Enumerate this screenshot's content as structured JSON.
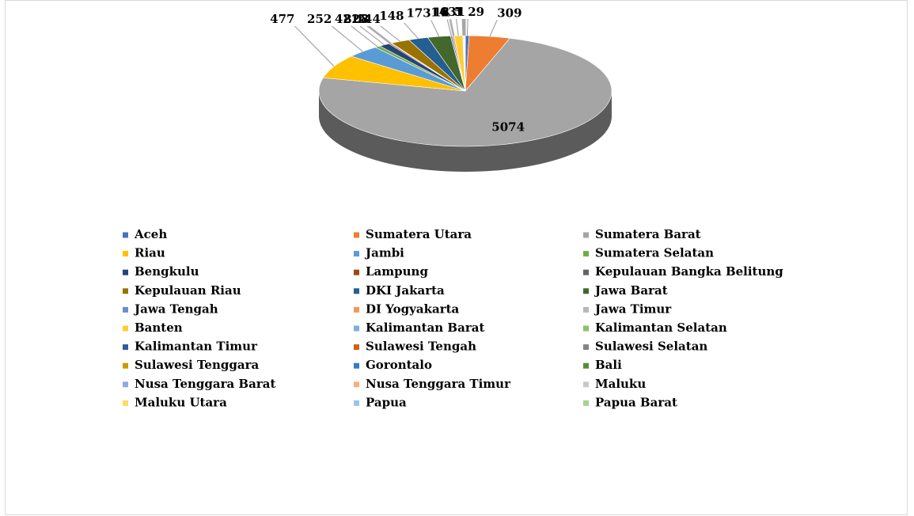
{
  "chart_data": {
    "type": "pie",
    "categories": [
      "Aceh",
      "Sumatera Utara",
      "Sumatera Barat",
      "Riau",
      "Jambi",
      "Sumatera Selatan",
      "Bengkulu",
      "Lampung",
      "Kepulauan Bangka Belitung",
      "Kepulauan Riau",
      "DKI Jakarta",
      "Jawa Barat",
      "Jawa Tengah",
      "DI Yogyakarta",
      "Jawa Timur",
      "Banten",
      "Kalimantan Barat",
      "Kalimantan Selatan",
      "Kalimantan Timur",
      "Sulawesi Tengah",
      "Sulawesi Selatan",
      "Sulawesi Tenggara",
      "Gorontalo",
      "Bali",
      "Nusa Tenggara Barat",
      "Nusa Tenggara Timur",
      "Maluku",
      "Maluku Utara",
      "Papua",
      "Papua Barat"
    ],
    "values": [
      29,
      309,
      5074,
      477,
      252,
      42,
      82,
      15,
      8,
      144,
      148,
      173,
      14,
      13,
      1,
      63,
      5,
      3,
      1,
      1,
      1,
      1,
      1,
      1,
      1,
      1,
      1,
      1,
      1,
      1
    ],
    "colors": [
      "#4472c4",
      "#ed7d31",
      "#a5a5a5",
      "#ffc000",
      "#5b9bd5",
      "#70ad47",
      "#264478",
      "#9e480e",
      "#636363",
      "#997300",
      "#255e91",
      "#43682b",
      "#698ed0",
      "#f1975a",
      "#b7b7b7",
      "#ffcd33",
      "#7cafdd",
      "#8cc168",
      "#335aa1",
      "#d26012",
      "#848484",
      "#cc9a00",
      "#327dc2",
      "#5a8a39",
      "#8faadc",
      "#f4b183",
      "#c9c9c9",
      "#ffd966",
      "#9dc3e6",
      "#a9d18e"
    ],
    "legend": "bottom"
  }
}
